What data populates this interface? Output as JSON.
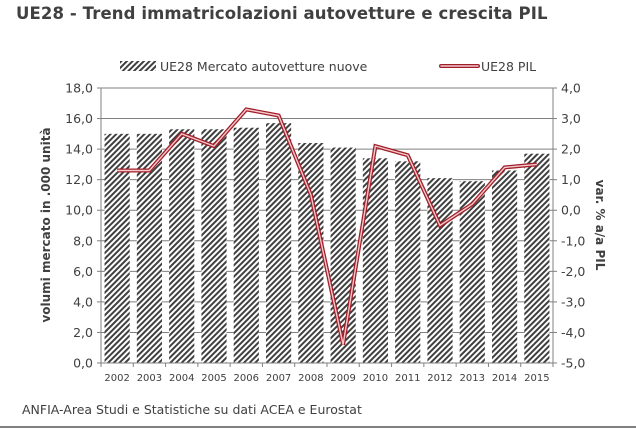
{
  "title": "UE28 - Trend immatricolazioni autovetture e crescita PIL",
  "footer": "ANFIA-Area Studi e Statistiche su dati ACEA e Eurostat",
  "colors": {
    "bar_hatch_dark": "#404040",
    "bar_hatch_light": "#ffffff",
    "line_outer": "#a0202a",
    "line_inner": "#f4c8cc",
    "gridline": "#808080",
    "text": "#404040"
  },
  "chart_data": {
    "type": "bar",
    "title": "UE28 - Trend immatricolazioni autovetture e crescita PIL",
    "categories": [
      "2002",
      "2003",
      "2004",
      "2005",
      "2006",
      "2007",
      "2008",
      "2009",
      "2010",
      "2011",
      "2012",
      "2013",
      "2014",
      "2015"
    ],
    "series": [
      {
        "name": "UE28 Mercato autovetture nuove",
        "type": "bar",
        "axis": "left",
        "values": [
          15.0,
          15.0,
          15.3,
          15.3,
          15.4,
          15.7,
          14.4,
          14.1,
          13.4,
          13.2,
          12.1,
          11.9,
          12.6,
          13.7
        ]
      },
      {
        "name": "UE28 PIL",
        "type": "line",
        "axis": "right",
        "values": [
          1.3,
          1.3,
          2.5,
          2.1,
          3.3,
          3.1,
          0.5,
          -4.4,
          2.1,
          1.8,
          -0.5,
          0.2,
          1.4,
          1.5
        ]
      }
    ],
    "ylabel": "volumi mercato in .000 unità",
    "ylabel_right": "var. % a/a PIL",
    "xlabel": "",
    "ylim": [
      0,
      18
    ],
    "ylim_right": [
      -5,
      4
    ],
    "yticks": [
      "0,0",
      "2,0",
      "4,0",
      "6,0",
      "8,0",
      "10,0",
      "12,0",
      "14,0",
      "16,0",
      "18,0"
    ],
    "yticks_right": [
      "-5,0",
      "-4,0",
      "-3,0",
      "-2,0",
      "-1,0",
      "0,0",
      "1,0",
      "2,0",
      "3,0",
      "4,0"
    ],
    "grid": true,
    "legend_position": "top"
  }
}
